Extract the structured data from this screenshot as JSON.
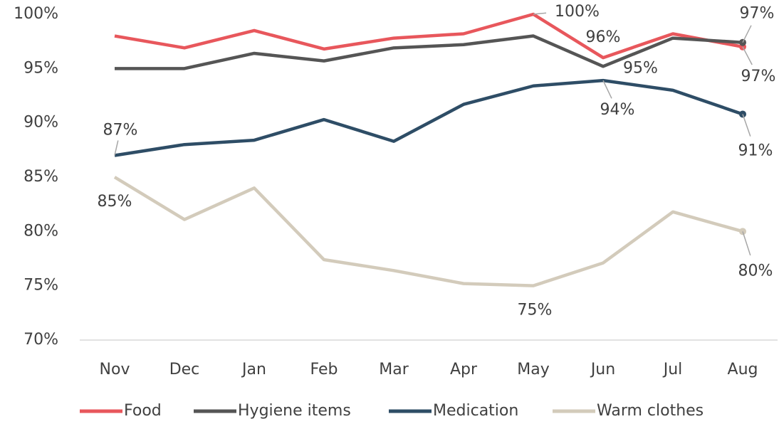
{
  "chart_data": {
    "type": "line",
    "categories": [
      "Nov",
      "Dec",
      "Jan",
      "Feb",
      "Mar",
      "Apr",
      "May",
      "Jun",
      "Jul",
      "Aug"
    ],
    "ylim": [
      70,
      100
    ],
    "yticks": [
      {
        "value": 70,
        "label": "70%"
      },
      {
        "value": 75,
        "label": "75%"
      },
      {
        "value": 80,
        "label": "80%"
      },
      {
        "value": 85,
        "label": "85%"
      },
      {
        "value": 90,
        "label": "90%"
      },
      {
        "value": 95,
        "label": "95%"
      },
      {
        "value": 100,
        "label": "100%"
      }
    ],
    "legend": "bottom",
    "series": [
      {
        "name": "Food",
        "color": "#e8575c",
        "values": [
          98.0,
          96.9,
          98.5,
          96.8,
          97.8,
          98.2,
          100,
          96.0,
          98.2,
          97.0
        ],
        "value_labels": [
          null,
          null,
          null,
          null,
          null,
          null,
          "100%",
          "96%",
          null,
          "97%"
        ]
      },
      {
        "name": "Hygiene items",
        "color": "#555555",
        "values": [
          95,
          95,
          96.4,
          95.7,
          96.9,
          97.2,
          98.0,
          95.2,
          97.8,
          97.4
        ],
        "value_labels": [
          null,
          null,
          null,
          null,
          null,
          null,
          null,
          "95%",
          null,
          "97%"
        ]
      },
      {
        "name": "Medication",
        "color": "#2e4d66",
        "values": [
          87.0,
          88.0,
          88.4,
          90.3,
          88.3,
          91.7,
          93.4,
          93.9,
          93.0,
          90.8
        ],
        "value_labels": [
          "87%",
          null,
          null,
          null,
          null,
          null,
          null,
          "94%",
          null,
          "91%"
        ]
      },
      {
        "name": "Warm clothes",
        "color": "#d3cbbb",
        "values": [
          85,
          81.1,
          84.0,
          77.4,
          76.4,
          75.2,
          75.0,
          77.1,
          81.8,
          80.0
        ],
        "value_labels": [
          "85%",
          null,
          null,
          null,
          null,
          null,
          "75%",
          null,
          null,
          "80%"
        ]
      }
    ]
  }
}
